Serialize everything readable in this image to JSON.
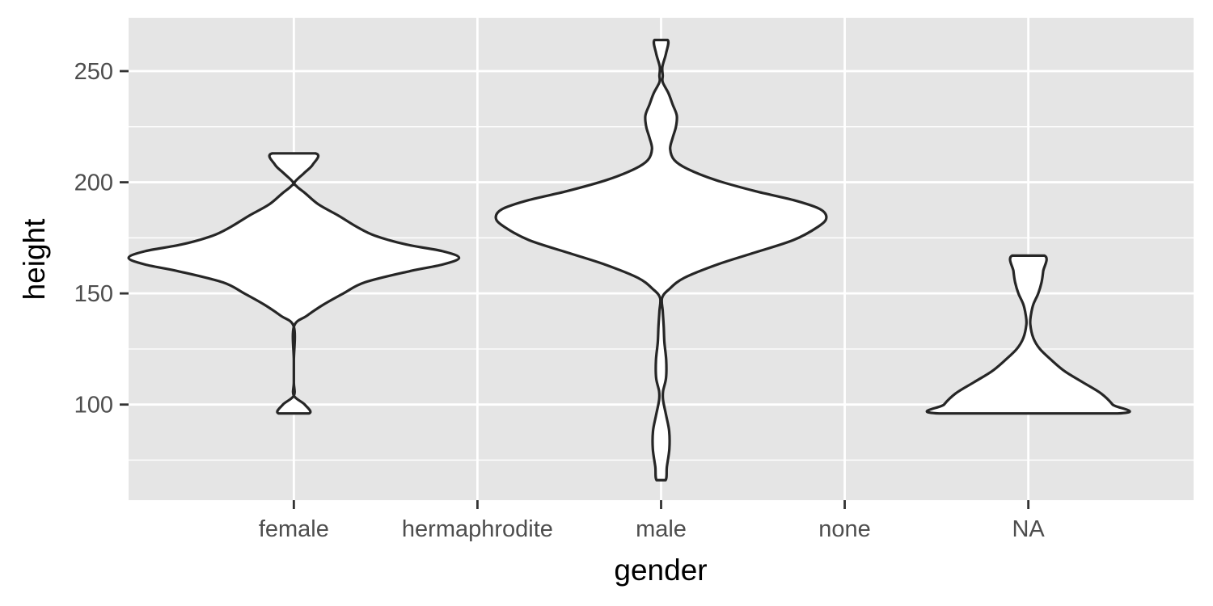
{
  "chart_data": {
    "type": "violin",
    "title": "",
    "xlabel": "gender",
    "ylabel": "height",
    "categories": [
      "female",
      "hermaphrodite",
      "male",
      "none",
      "NA"
    ],
    "ylim": [
      57,
      274
    ],
    "y_ticks": [
      100,
      150,
      200,
      250
    ],
    "y_minor_ticks": [
      75,
      125,
      175,
      225
    ],
    "grid": true,
    "legend": "none",
    "colors": {
      "panel": "#e5e5e5",
      "grid": "#ffffff",
      "violin_fill": "#ffffff",
      "violin_stroke": "#262626",
      "tick": "#333333",
      "tick_label": "#4d4d4d",
      "axis_title": "#000000"
    },
    "violins": [
      {
        "category": "female",
        "y_min": 96,
        "y_max": 213,
        "profile": [
          [
            96,
            0.091
          ],
          [
            100,
            0.066
          ],
          [
            104,
            0.0
          ],
          [
            110,
            0.0
          ],
          [
            120,
            0.0
          ],
          [
            135,
            0.0
          ],
          [
            140,
            0.08
          ],
          [
            145,
            0.18
          ],
          [
            150,
            0.3
          ],
          [
            155,
            0.43
          ],
          [
            160,
            0.7
          ],
          [
            163,
            0.9
          ],
          [
            166,
            1.0
          ],
          [
            169,
            0.9
          ],
          [
            172,
            0.68
          ],
          [
            176,
            0.49
          ],
          [
            180,
            0.38
          ],
          [
            185,
            0.27
          ],
          [
            190,
            0.15
          ],
          [
            195,
            0.07
          ],
          [
            198,
            0.02
          ],
          [
            200,
            0.005
          ],
          [
            204,
            0.06
          ],
          [
            208,
            0.115
          ],
          [
            213,
            0.131
          ]
        ]
      },
      {
        "category": "male",
        "y_min": 66,
        "y_max": 264,
        "profile": [
          [
            66,
            0.027
          ],
          [
            72,
            0.035
          ],
          [
            80,
            0.05
          ],
          [
            88,
            0.049
          ],
          [
            95,
            0.031
          ],
          [
            102,
            0.012
          ],
          [
            106,
            0.012
          ],
          [
            112,
            0.03
          ],
          [
            120,
            0.031
          ],
          [
            128,
            0.02
          ],
          [
            135,
            0.016
          ],
          [
            142,
            0.01
          ],
          [
            148,
            0.006
          ],
          [
            152,
            0.05
          ],
          [
            157,
            0.14
          ],
          [
            163,
            0.34
          ],
          [
            168,
            0.55
          ],
          [
            174,
            0.8
          ],
          [
            180,
            0.95
          ],
          [
            184,
            1.0
          ],
          [
            188,
            0.96
          ],
          [
            192,
            0.8
          ],
          [
            196,
            0.57
          ],
          [
            201,
            0.33
          ],
          [
            206,
            0.16
          ],
          [
            210,
            0.08
          ],
          [
            215,
            0.055
          ],
          [
            220,
            0.07
          ],
          [
            225,
            0.09
          ],
          [
            230,
            0.095
          ],
          [
            235,
            0.07
          ],
          [
            240,
            0.045
          ],
          [
            245,
            0.01
          ],
          [
            248,
            0.01
          ],
          [
            252,
            0.008
          ],
          [
            258,
            0.03
          ],
          [
            264,
            0.04
          ]
        ]
      },
      {
        "category": "NA",
        "y_min": 96,
        "y_max": 167,
        "profile": [
          [
            96,
            0.54
          ],
          [
            100,
            0.51
          ],
          [
            105,
            0.44
          ],
          [
            110,
            0.33
          ],
          [
            115,
            0.22
          ],
          [
            120,
            0.14
          ],
          [
            125,
            0.07
          ],
          [
            130,
            0.03
          ],
          [
            136,
            0.012
          ],
          [
            140,
            0.015
          ],
          [
            145,
            0.03
          ],
          [
            150,
            0.06
          ],
          [
            155,
            0.08
          ],
          [
            160,
            0.09
          ],
          [
            167,
            0.098
          ]
        ]
      }
    ]
  }
}
